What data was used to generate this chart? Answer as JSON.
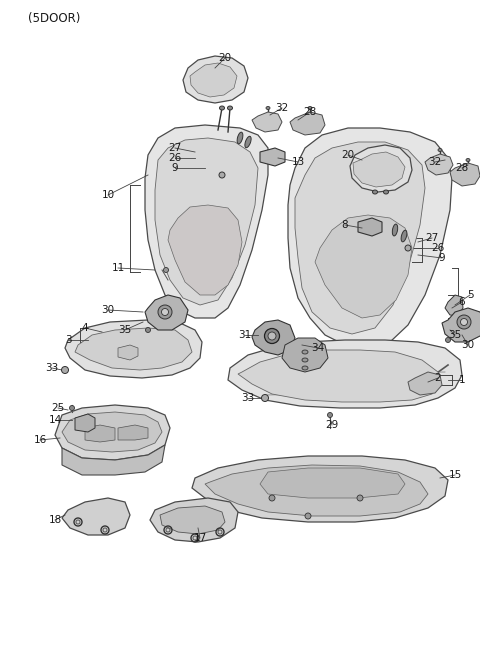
{
  "bg_color": "#ffffff",
  "line_color": "#4a4a4a",
  "fill_light": "#e8e8e8",
  "fill_mid": "#d4d4d4",
  "fill_dark": "#c0c0c0",
  "text_color": "#1a1a1a",
  "fig_width": 4.8,
  "fig_height": 6.55,
  "dpi": 100,
  "header": "(5DOOR)"
}
